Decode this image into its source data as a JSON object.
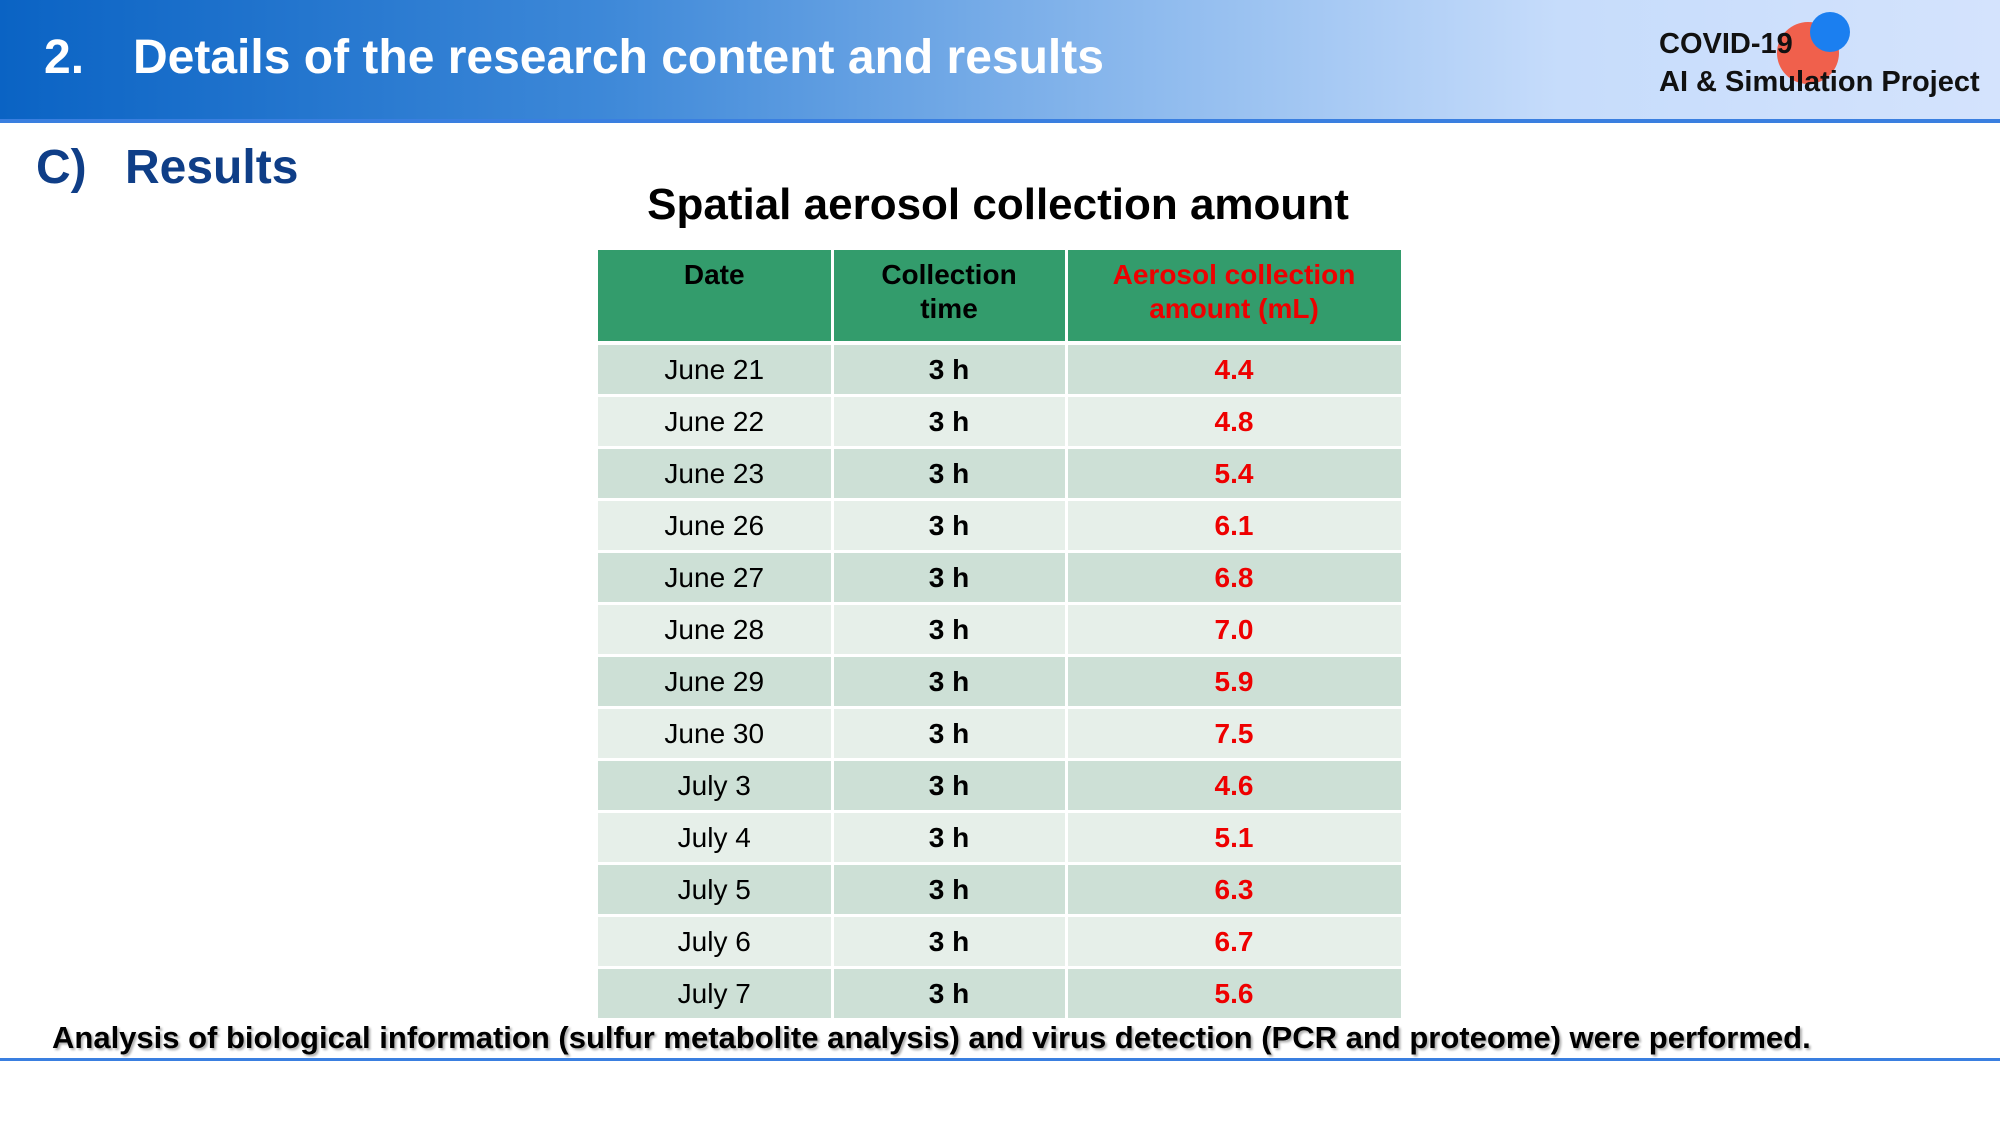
{
  "header": {
    "section_number": "2.",
    "title": "Details of the research content and results",
    "logo_line1": "COVID-19",
    "logo_line2": "AI & Simulation Project"
  },
  "section": {
    "letter": "C)",
    "title": "Results"
  },
  "table": {
    "title": "Spatial aerosol collection amount",
    "headers": {
      "date": "Date",
      "time_line1": "Collection",
      "time_line2": "time",
      "amount_line1": "Aerosol collection",
      "amount_line2": "amount (mL)"
    },
    "rows": [
      {
        "date": "June 21",
        "time": "3 h",
        "amount": "4.4"
      },
      {
        "date": "June 22",
        "time": "3 h",
        "amount": "4.8"
      },
      {
        "date": "June 23",
        "time": "3 h",
        "amount": "5.4"
      },
      {
        "date": "June 26",
        "time": "3 h",
        "amount": "6.1"
      },
      {
        "date": "June 27",
        "time": "3 h",
        "amount": "6.8"
      },
      {
        "date": "June 28",
        "time": "3 h",
        "amount": "7.0"
      },
      {
        "date": "June 29",
        "time": "3 h",
        "amount": "5.9"
      },
      {
        "date": "June 30",
        "time": "3 h",
        "amount": "7.5"
      },
      {
        "date": "July 3",
        "time": "3 h",
        "amount": "4.6"
      },
      {
        "date": "July 4",
        "time": "3 h",
        "amount": "5.1"
      },
      {
        "date": "July 5",
        "time": "3 h",
        "amount": "6.3"
      },
      {
        "date": "July 6",
        "time": "3 h",
        "amount": "6.7"
      },
      {
        "date": "July 7",
        "time": "3 h",
        "amount": "5.6"
      }
    ]
  },
  "footer": {
    "text": "Analysis of biological information (sulfur metabolite analysis) and virus detection (PCR and proteome) were performed."
  },
  "colors": {
    "header_start": "#0a63c4",
    "header_end": "#d4e3fd",
    "table_header": "#339c6c",
    "highlight_red": "#ee0000",
    "section_title": "#0f3e87"
  }
}
